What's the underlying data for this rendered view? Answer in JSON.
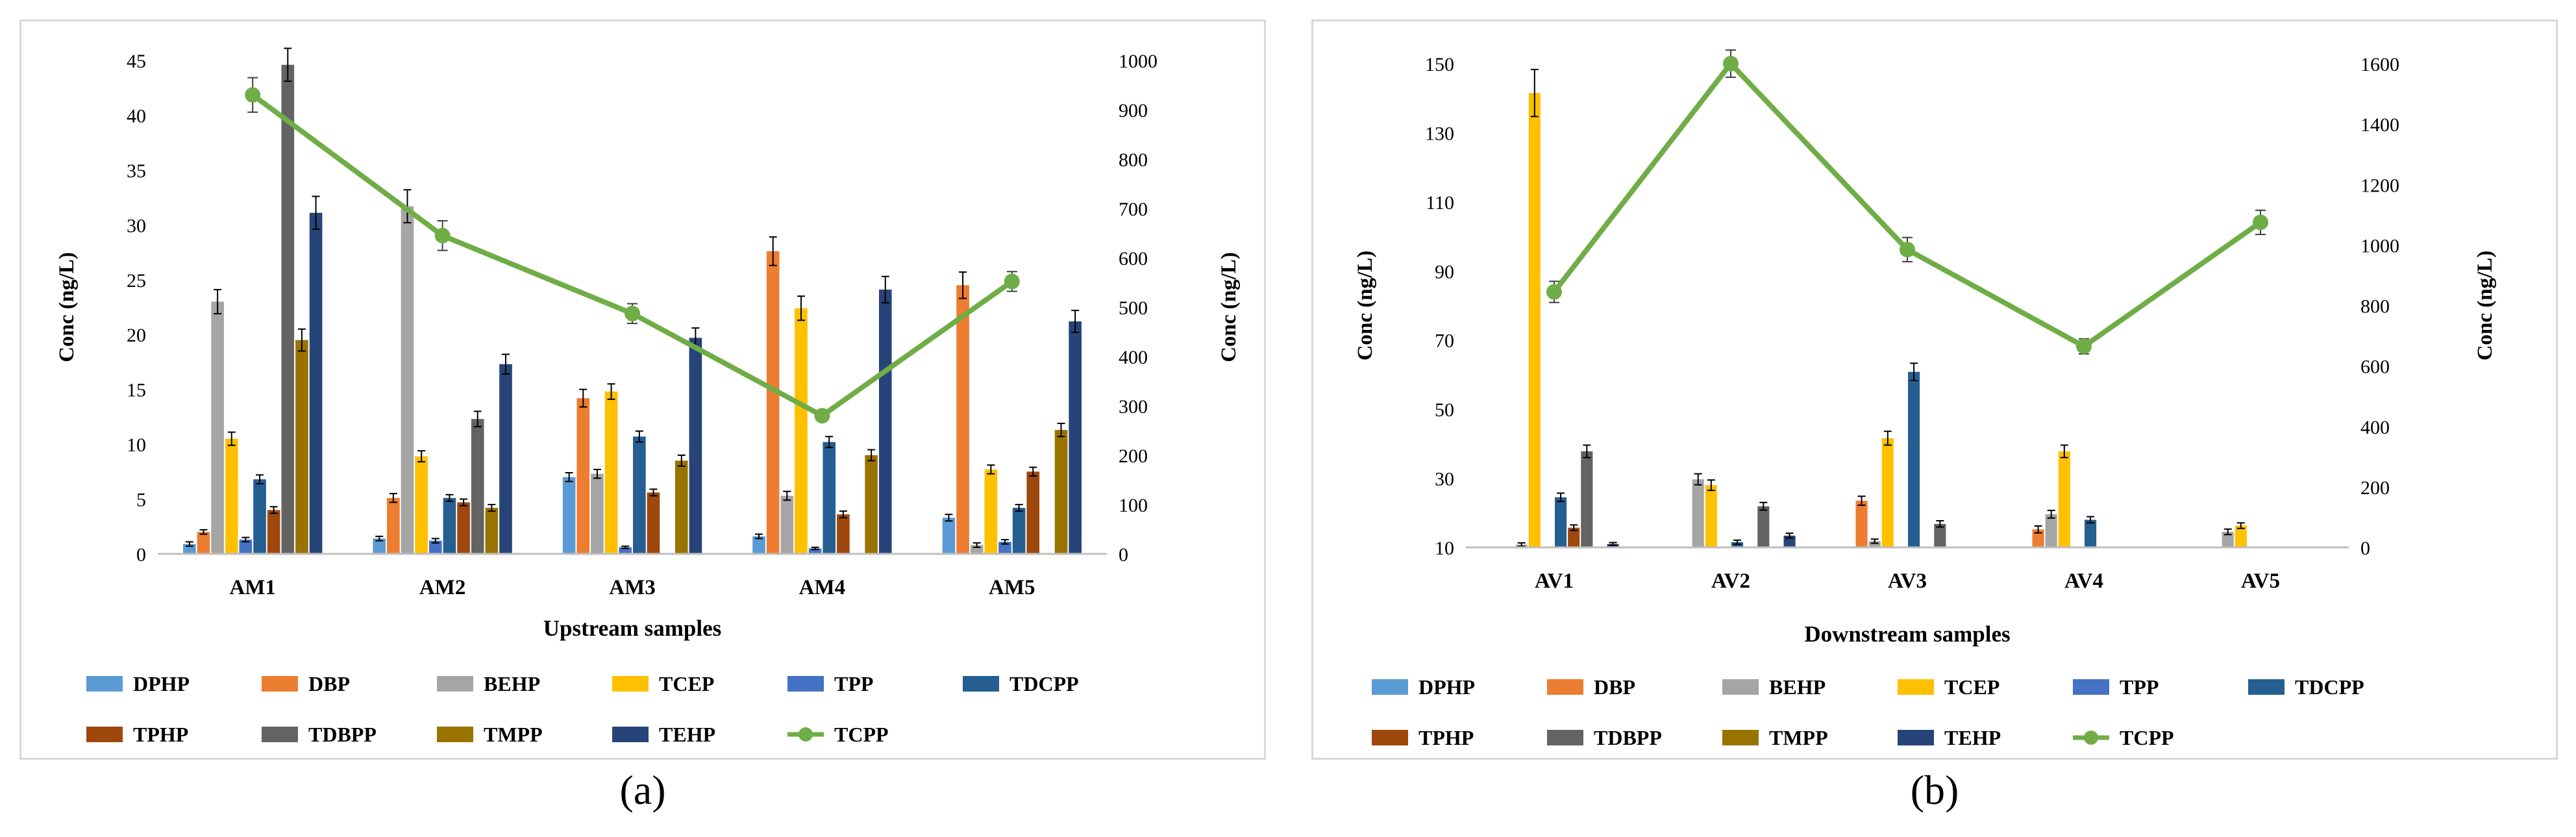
{
  "panels": [
    {
      "label": "(a)"
    },
    {
      "label": "(b)"
    }
  ],
  "chart_data": [
    {
      "type": "bar",
      "xlabel": "Upstream samples",
      "ylabel": "Conc (ng/L)",
      "y2label": "Conc (ng/L)",
      "ylim": [
        0,
        45
      ],
      "y2lim": [
        0,
        1000
      ],
      "yticks": [
        0,
        5,
        10,
        15,
        20,
        25,
        30,
        35,
        40,
        45
      ],
      "y2ticks": [
        0,
        100,
        200,
        300,
        400,
        500,
        600,
        700,
        800,
        900,
        1000
      ],
      "categories": [
        "AM1",
        "AM2",
        "AM3",
        "AM4",
        "AM5"
      ],
      "legend_position": "bottom",
      "series": [
        {
          "name": "DPHP",
          "color": "#5b9bd5",
          "values": [
            0.9,
            1.4,
            7.0,
            1.6,
            3.3
          ],
          "errors": [
            0.2,
            0.2,
            0.4,
            0.2,
            0.3
          ]
        },
        {
          "name": "DBP",
          "color": "#ed7d31",
          "values": [
            2.0,
            5.1,
            14.2,
            27.6,
            24.5
          ],
          "errors": [
            0.2,
            0.4,
            0.8,
            1.3,
            1.2
          ]
        },
        {
          "name": "BEHP",
          "color": "#a5a5a5",
          "values": [
            23.0,
            31.7,
            7.3,
            5.3,
            0.8
          ],
          "errors": [
            1.1,
            1.5,
            0.4,
            0.4,
            0.2
          ]
        },
        {
          "name": "TCEP",
          "color": "#ffc000",
          "values": [
            10.5,
            8.9,
            14.8,
            22.4,
            7.7
          ],
          "errors": [
            0.6,
            0.5,
            0.7,
            1.1,
            0.4
          ]
        },
        {
          "name": "TPP",
          "color": "#4472c4",
          "values": [
            1.3,
            1.2,
            0.6,
            0.5,
            1.1
          ],
          "errors": [
            0.2,
            0.2,
            0.1,
            0.1,
            0.2
          ]
        },
        {
          "name": "TDCPP",
          "color": "#255e91",
          "values": [
            6.8,
            5.1,
            10.7,
            10.2,
            4.2
          ],
          "errors": [
            0.4,
            0.3,
            0.5,
            0.5,
            0.3
          ]
        },
        {
          "name": "TPHP",
          "color": "#9e480e",
          "values": [
            4.0,
            4.7,
            5.6,
            3.6,
            7.5
          ],
          "errors": [
            0.3,
            0.3,
            0.3,
            0.3,
            0.4
          ]
        },
        {
          "name": "TDBPP",
          "color": "#636363",
          "values": [
            44.6,
            12.3,
            0,
            0,
            0
          ],
          "errors": [
            1.5,
            0.7,
            0,
            0,
            0
          ]
        },
        {
          "name": "TMPP",
          "color": "#997300",
          "values": [
            19.5,
            4.2,
            8.5,
            9.0,
            11.3
          ],
          "errors": [
            1.0,
            0.3,
            0.5,
            0.5,
            0.6
          ]
        },
        {
          "name": "TEHP",
          "color": "#264478",
          "values": [
            31.1,
            17.3,
            19.7,
            24.1,
            21.2
          ],
          "errors": [
            1.5,
            0.9,
            0.9,
            1.2,
            1.0
          ]
        }
      ],
      "line_series": {
        "name": "TCPP",
        "color": "#70ad47",
        "axis": "right",
        "values": [
          930,
          645,
          487,
          280,
          552
        ],
        "errors": [
          35,
          30,
          20,
          10,
          20
        ]
      }
    },
    {
      "type": "bar",
      "xlabel": "Downstream samples",
      "ylabel": "Conc (ng/L)",
      "y2label": "Conc (ng/L)",
      "ylim": [
        10,
        150
      ],
      "y2lim": [
        0,
        1600
      ],
      "yticks": [
        10,
        30,
        50,
        70,
        90,
        110,
        130,
        150
      ],
      "y2ticks": [
        0,
        200,
        400,
        600,
        800,
        1000,
        1200,
        1400,
        1600
      ],
      "categories": [
        "AV1",
        "AV2",
        "AV3",
        "AV4",
        "AV5"
      ],
      "legend_position": "bottom",
      "series": [
        {
          "name": "DPHP",
          "color": "#5b9bd5",
          "values": [
            10,
            10,
            10,
            10,
            10
          ],
          "errors": [
            0,
            0,
            0,
            0,
            0
          ]
        },
        {
          "name": "DBP",
          "color": "#ed7d31",
          "values": [
            10,
            10,
            23.5,
            15.2,
            10
          ],
          "errors": [
            0,
            0,
            1.3,
            1.0,
            0
          ]
        },
        {
          "name": "BEHP",
          "color": "#a5a5a5",
          "values": [
            10.8,
            29.7,
            11.8,
            19.6,
            14.5
          ],
          "errors": [
            0.5,
            1.6,
            0.6,
            1.1,
            0.8
          ]
        },
        {
          "name": "TCEP",
          "color": "#ffc000",
          "values": [
            141.5,
            28.0,
            41.6,
            37.8,
            16.3
          ],
          "errors": [
            6.8,
            1.5,
            2.0,
            1.8,
            0.8
          ]
        },
        {
          "name": "TPP",
          "color": "#4472c4",
          "values": [
            10,
            10,
            10,
            10,
            10
          ],
          "errors": [
            0,
            0,
            0,
            0,
            0
          ]
        },
        {
          "name": "TDCPP",
          "color": "#255e91",
          "values": [
            24.5,
            11.5,
            60.8,
            18.0,
            10
          ],
          "errors": [
            1.2,
            0.6,
            2.5,
            0.9,
            0
          ]
        },
        {
          "name": "TPHP",
          "color": "#9e480e",
          "values": [
            15.7,
            10,
            10,
            10,
            10
          ],
          "errors": [
            0.8,
            0,
            0,
            0,
            0
          ]
        },
        {
          "name": "TDBPP",
          "color": "#636363",
          "values": [
            37.8,
            21.9,
            16.8,
            10,
            10
          ],
          "errors": [
            1.8,
            1.1,
            0.9,
            0,
            0
          ]
        },
        {
          "name": "TMPP",
          "color": "#997300",
          "values": [
            10,
            10,
            10,
            10,
            10
          ],
          "errors": [
            0,
            0,
            0,
            0,
            0
          ]
        },
        {
          "name": "TEHP",
          "color": "#264478",
          "values": [
            11.0,
            13.4,
            10,
            10,
            10
          ],
          "errors": [
            0.4,
            0.7,
            0,
            0,
            0
          ]
        }
      ],
      "line_series": {
        "name": "TCPP",
        "color": "#70ad47",
        "axis": "right",
        "values": [
          845,
          1600,
          985,
          665,
          1075
        ],
        "errors": [
          35,
          45,
          40,
          25,
          40
        ]
      }
    }
  ]
}
